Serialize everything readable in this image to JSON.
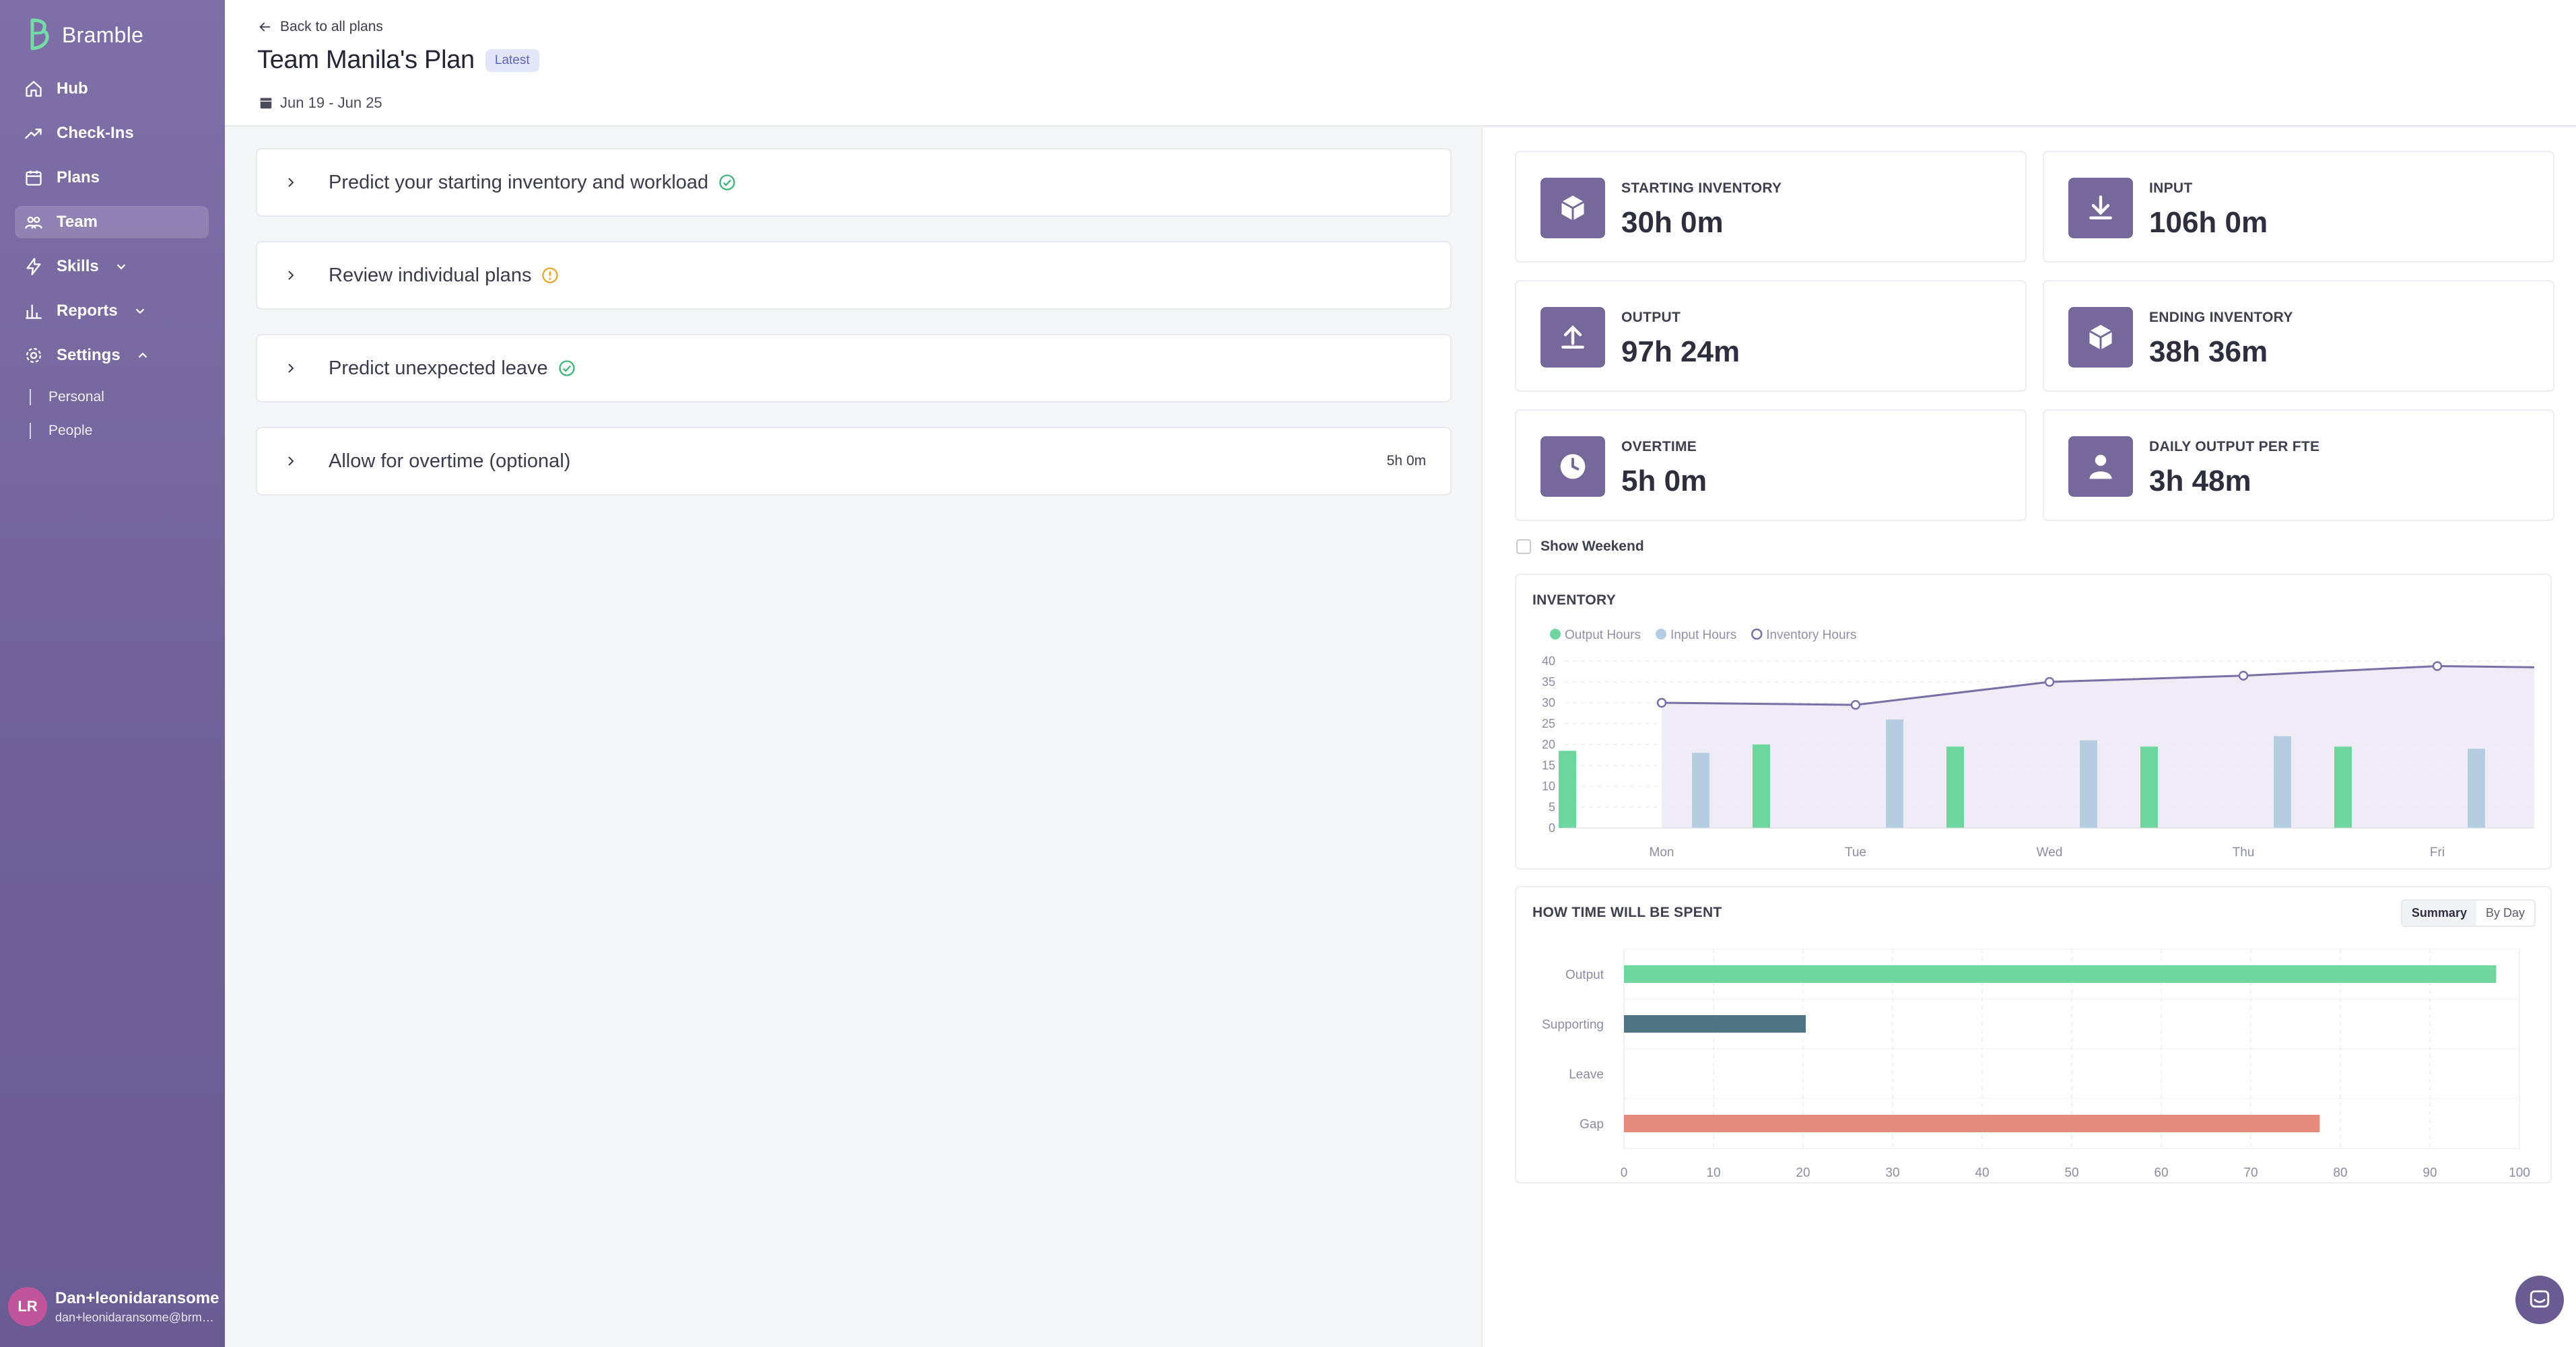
{
  "app": {
    "name": "Bramble"
  },
  "nav": {
    "items": [
      {
        "label": "Hub"
      },
      {
        "label": "Check-Ins"
      },
      {
        "label": "Plans"
      },
      {
        "label": "Team"
      },
      {
        "label": "Skills"
      },
      {
        "label": "Reports"
      },
      {
        "label": "Settings"
      }
    ],
    "settings_sub": [
      {
        "label": "Personal"
      },
      {
        "label": "People"
      }
    ]
  },
  "user": {
    "initials": "LR",
    "name": "Dan+leonidaransome",
    "email": "dan+leonidaransome@brmb..."
  },
  "header": {
    "back_label": "Back to all plans",
    "title": "Team Manila's Plan",
    "badge": "Latest",
    "date_range": "Jun 19 - Jun 25"
  },
  "steps": [
    {
      "label": "Predict your starting inventory and workload",
      "status": "complete",
      "value": ""
    },
    {
      "label": "Review individual plans",
      "status": "warning",
      "value": ""
    },
    {
      "label": "Predict unexpected leave",
      "status": "complete",
      "value": ""
    },
    {
      "label": "Allow for overtime (optional)",
      "status": "none",
      "value": "5h 0m"
    }
  ],
  "kpis": [
    {
      "label": "STARTING INVENTORY",
      "value": "30h 0m",
      "icon": "box-icon"
    },
    {
      "label": "INPUT",
      "value": "106h 0m",
      "icon": "download-icon"
    },
    {
      "label": "OUTPUT",
      "value": "97h 24m",
      "icon": "upload-icon"
    },
    {
      "label": "ENDING INVENTORY",
      "value": "38h 36m",
      "icon": "box-icon"
    },
    {
      "label": "OVERTIME",
      "value": "5h 0m",
      "icon": "clock-icon"
    },
    {
      "label": "DAILY OUTPUT PER FTE",
      "value": "3h 48m",
      "icon": "person-icon"
    }
  ],
  "show_weekend": {
    "label": "Show Weekend",
    "checked": false
  },
  "colors": {
    "output": "#6fd6a0",
    "input": "#b5cde0",
    "inventory": "#7a6fa6",
    "supporting": "#4f7585",
    "gap": "#e48b7c",
    "brand": "#76689b"
  },
  "summary_toggle": {
    "options": [
      "Summary",
      "By Day"
    ],
    "selected": "Summary"
  },
  "chart_data": [
    {
      "type": "bar",
      "title": "INVENTORY",
      "categories": [
        "Mon",
        "Tue",
        "Wed",
        "Thu",
        "Fri"
      ],
      "series": [
        {
          "name": "Output Hours",
          "type": "bar",
          "values": [
            18.5,
            20,
            19.5,
            19.5,
            19.5
          ]
        },
        {
          "name": "Input Hours",
          "type": "bar",
          "values": [
            18,
            26,
            21,
            22,
            19
          ]
        },
        {
          "name": "Inventory Hours",
          "type": "line",
          "values": [
            30,
            29.5,
            35,
            36.5,
            38.8
          ]
        }
      ],
      "ylim": [
        0,
        40
      ],
      "yticks": [
        0,
        5,
        10,
        15,
        20,
        25,
        30,
        35,
        40
      ],
      "legend": "top-left"
    },
    {
      "type": "bar",
      "orientation": "horizontal",
      "title": "HOW TIME WILL BE SPENT",
      "categories": [
        "Output",
        "Supporting",
        "Leave",
        "Gap"
      ],
      "values": [
        97.4,
        20.3,
        0,
        77.7
      ],
      "xlim": [
        0,
        100
      ],
      "xticks": [
        0,
        10,
        20,
        30,
        40,
        50,
        60,
        70,
        80,
        90,
        100
      ],
      "grid": true
    }
  ]
}
